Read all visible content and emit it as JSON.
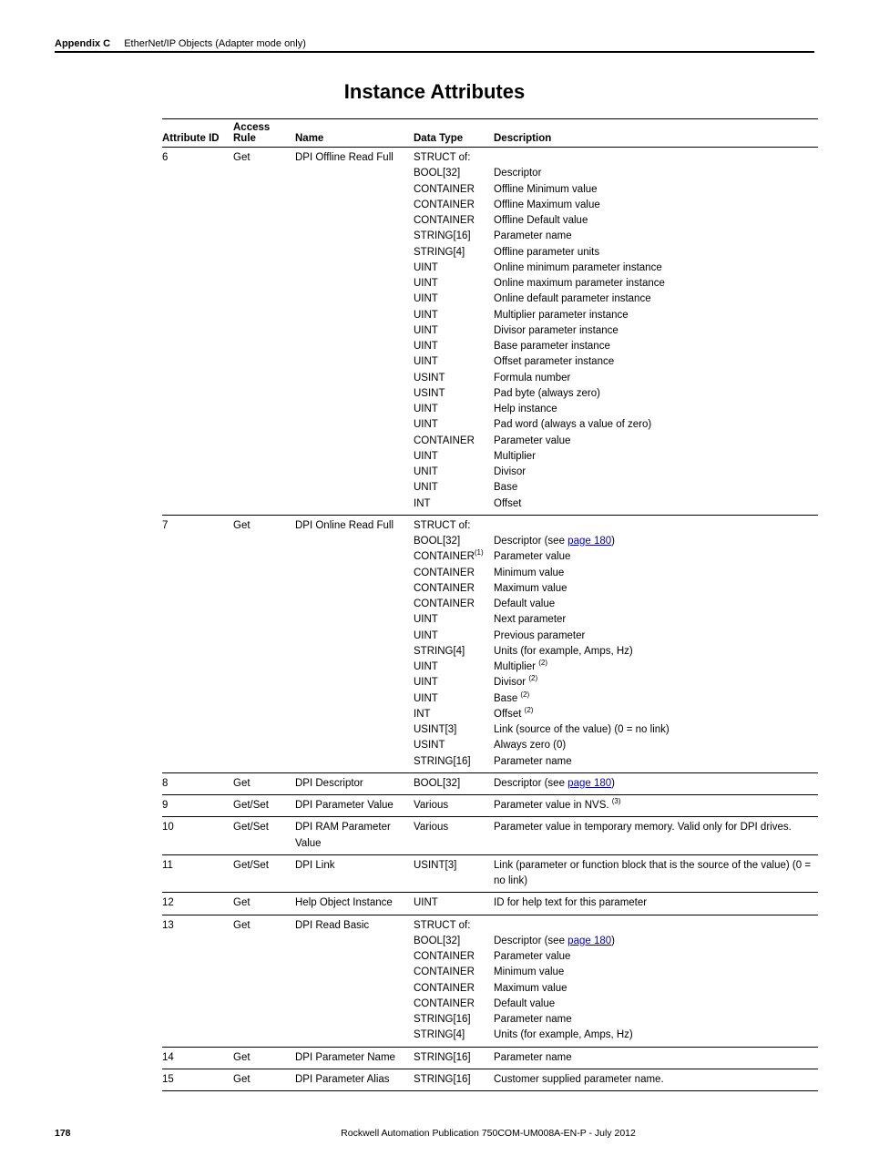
{
  "header": {
    "appendix": "Appendix C",
    "section": "EtherNet/IP Objects (Adapter mode only)"
  },
  "title": "Instance Attributes",
  "columns": [
    "Attribute ID",
    "Access Rule",
    "Name",
    "Data Type",
    "Description"
  ],
  "rows": [
    {
      "id": "6",
      "rule": "Get",
      "name": "DPI Offline Read Full",
      "dt": [
        "STRUCT of:",
        "BOOL[32]",
        "CONTAINER",
        "CONTAINER",
        "CONTAINER",
        "STRING[16]",
        "STRING[4]",
        "UINT",
        "UINT",
        "UINT",
        "UINT",
        "UINT",
        "UINT",
        "UINT",
        "USINT",
        "USINT",
        "UINT",
        "UINT",
        "CONTAINER",
        "UINT",
        "UNIT",
        "UNIT",
        "INT"
      ],
      "desc": [
        "",
        "Descriptor",
        "Offline Minimum value",
        "Offline Maximum value",
        "Offline Default value",
        "Parameter name",
        "Offline parameter units",
        "Online minimum parameter instance",
        "Online maximum parameter instance",
        "Online default parameter instance",
        "Multiplier parameter instance",
        "Divisor parameter instance",
        "Base parameter instance",
        "Offset parameter instance",
        "Formula number",
        "Pad byte (always zero)",
        "Help instance",
        "Pad word (always a value of zero)",
        "Parameter value",
        "Multiplier",
        "Divisor",
        "Base",
        "Offset"
      ]
    },
    {
      "id": "7",
      "rule": "Get",
      "name": "DPI Online Read Full",
      "dt": [
        "STRUCT of:",
        "BOOL[32]",
        "CONTAINER<sup>(1)</sup>",
        "CONTAINER",
        "CONTAINER",
        "CONTAINER",
        "UINT",
        "UINT",
        "STRING[4]",
        "UINT",
        "UINT",
        "UINT",
        "INT",
        "USINT[3]",
        "USINT",
        "STRING[16]"
      ],
      "desc": [
        "",
        "Descriptor (see <a class='pagelink' href='#' data-name='page-link' data-interactable='true'>page 180</a>)",
        "Parameter value",
        "Minimum value",
        "Maximum value",
        "Default value",
        "Next parameter",
        "Previous parameter",
        "Units (for example, Amps, Hz)",
        "Multiplier <sup>(2)</sup>",
        "Divisor <sup>(2)</sup>",
        "Base <sup>(2)</sup>",
        "Offset <sup>(2)</sup>",
        "Link (source of the value) (0 = no link)",
        "Always zero (0)",
        "Parameter name"
      ]
    },
    {
      "id": "8",
      "rule": "Get",
      "name": "DPI Descriptor",
      "dt": [
        "BOOL[32]"
      ],
      "desc": [
        "Descriptor (see <a class='pagelink' href='#' data-name='page-link' data-interactable='true'>page 180</a>)"
      ]
    },
    {
      "id": "9",
      "rule": "Get/Set",
      "name": "DPI Parameter Value",
      "dt": [
        "Various"
      ],
      "desc": [
        "Parameter value in NVS. <sup>(3)</sup>"
      ]
    },
    {
      "id": "10",
      "rule": "Get/Set",
      "name": "DPI RAM Parameter Value",
      "dt": [
        "Various"
      ],
      "desc": [
        "Parameter value in temporary memory. Valid only for DPI drives."
      ]
    },
    {
      "id": "11",
      "rule": "Get/Set",
      "name": "DPI Link",
      "dt": [
        "USINT[3]"
      ],
      "desc": [
        "Link (parameter or function block that is the source of the value) (0 = no link)"
      ]
    },
    {
      "id": "12",
      "rule": "Get",
      "name": "Help Object Instance",
      "dt": [
        "UINT"
      ],
      "desc": [
        "ID for help text for this parameter"
      ]
    },
    {
      "id": "13",
      "rule": "Get",
      "name": "DPI Read Basic",
      "dt": [
        "STRUCT of:",
        "BOOL[32]",
        "CONTAINER",
        "CONTAINER",
        "CONTAINER",
        "CONTAINER",
        "STRING[16]",
        "STRING[4]"
      ],
      "desc": [
        "",
        "Descriptor (see <a class='pagelink' href='#' data-name='page-link' data-interactable='true'>page 180</a>)",
        "Parameter value",
        "Minimum value",
        "Maximum value",
        "Default value",
        "Parameter name",
        "Units (for example, Amps, Hz)"
      ]
    },
    {
      "id": "14",
      "rule": "Get",
      "name": "DPI Parameter Name",
      "dt": [
        "STRING[16]"
      ],
      "desc": [
        "Parameter name"
      ]
    },
    {
      "id": "15",
      "rule": "Get",
      "name": "DPI Parameter Alias",
      "dt": [
        "STRING[16]"
      ],
      "desc": [
        "Customer supplied parameter name."
      ]
    }
  ],
  "footer": {
    "page": "178",
    "publication": "Rockwell Automation Publication 750COM-UM008A-EN-P - July 2012"
  }
}
